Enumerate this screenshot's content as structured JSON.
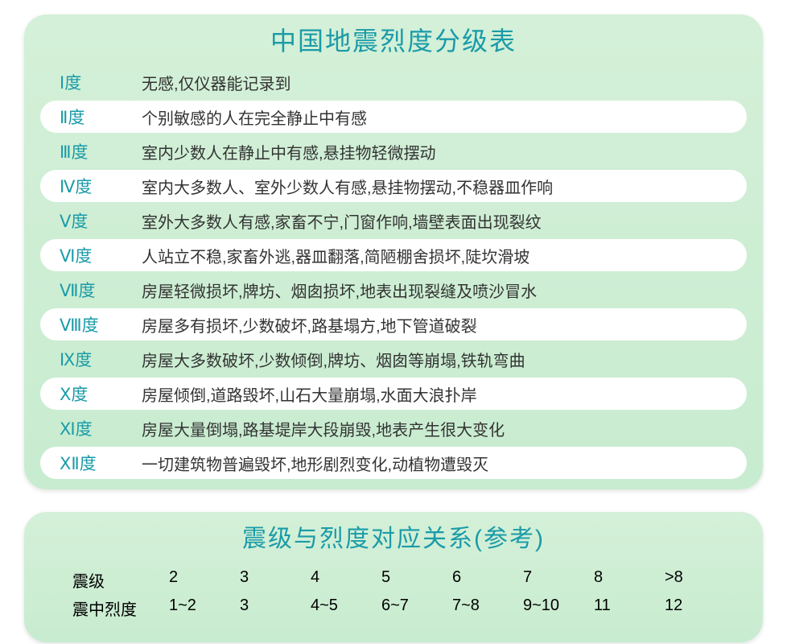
{
  "colors": {
    "title_color": "#1a9ba8",
    "level_color": "#1a9ba8",
    "card_bg_top": "#d4f0d8",
    "card_bg_bottom": "#c8ecd0",
    "row_white": "#ffffff",
    "text_color": "#333333"
  },
  "typography": {
    "title_fontsize": 32,
    "row_fontsize": 20,
    "level_fontsize": 21
  },
  "main_table": {
    "title": "中国地震烈度分级表",
    "rows": [
      {
        "level": "Ⅰ度",
        "desc": "无感,仅仪器能记录到"
      },
      {
        "level": "Ⅱ度",
        "desc": "个别敏感的人在完全静止中有感"
      },
      {
        "level": "Ⅲ度",
        "desc": "室内少数人在静止中有感,悬挂物轻微摆动"
      },
      {
        "level": "Ⅳ度",
        "desc": "室内大多数人、室外少数人有感,悬挂物摆动,不稳器皿作响"
      },
      {
        "level": "Ⅴ度",
        "desc": "室外大多数人有感,家畜不宁,门窗作响,墙壁表面出现裂纹"
      },
      {
        "level": "Ⅵ度",
        "desc": "人站立不稳,家畜外逃,器皿翻落,简陋棚舍损坏,陡坎滑坡"
      },
      {
        "level": "Ⅶ度",
        "desc": "房屋轻微损坏,牌坊、烟囱损坏,地表出现裂缝及喷沙冒水"
      },
      {
        "level": "Ⅷ度",
        "desc": "房屋多有损坏,少数破坏,路基塌方,地下管道破裂"
      },
      {
        "level": "Ⅸ度",
        "desc": "房屋大多数破坏,少数倾倒,牌坊、烟囱等崩塌,铁轨弯曲"
      },
      {
        "level": "Ⅹ度",
        "desc": "房屋倾倒,道路毁坏,山石大量崩塌,水面大浪扑岸"
      },
      {
        "level": "Ⅺ度",
        "desc": "房屋大量倒塌,路基堤岸大段崩毁,地表产生很大变化"
      },
      {
        "level": "ⅩⅡ度",
        "desc": "一切建筑物普遍毁坏,地形剧烈变化,动植物遭毁灭"
      }
    ]
  },
  "ref_table": {
    "title": "震级与烈度对应关系(参考)",
    "row1_label": "震级",
    "row2_label": "震中烈度",
    "magnitude": [
      "2",
      "3",
      "4",
      "5",
      "6",
      "7",
      "8",
      ">8"
    ],
    "intensity": [
      "1~2",
      "3",
      "4~5",
      "6~7",
      "7~8",
      "9~10",
      "11",
      "12"
    ]
  }
}
